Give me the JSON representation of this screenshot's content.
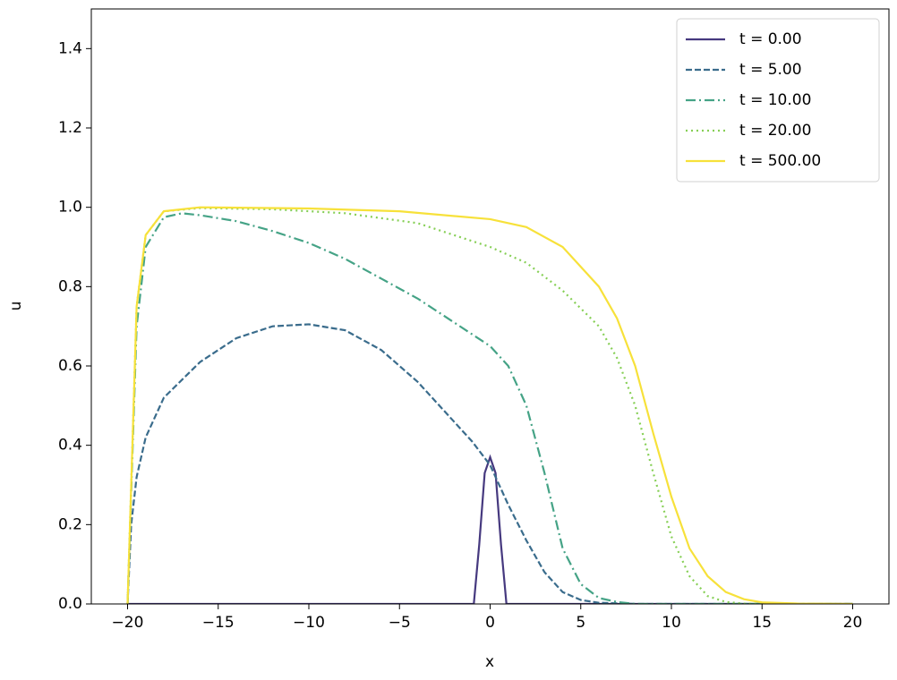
{
  "chart_data": {
    "type": "line",
    "xlabel": "x",
    "ylabel": "u",
    "xlim": [
      -22,
      22
    ],
    "ylim": [
      0,
      1.5
    ],
    "xticks": [
      {
        "value": -20,
        "label": "−20"
      },
      {
        "value": -15,
        "label": "−15"
      },
      {
        "value": -10,
        "label": "−10"
      },
      {
        "value": -5,
        "label": "−5"
      },
      0,
      5,
      10,
      15,
      20
    ],
    "yticks": [
      {
        "value": 0,
        "label": "0.0"
      },
      {
        "value": 0.2,
        "label": "0.2"
      },
      {
        "value": 0.4,
        "label": "0.4"
      },
      {
        "value": 0.6,
        "label": "0.6"
      },
      {
        "value": 0.8,
        "label": "0.8"
      },
      {
        "value": 1.0,
        "label": "1.0"
      },
      {
        "value": 1.2,
        "label": "1.2"
      },
      {
        "value": 1.4,
        "label": "1.4"
      }
    ],
    "legend": "upper right",
    "grid": false,
    "series": [
      {
        "name": "t = 0.00",
        "color": "#46397f",
        "linestyle": "solid",
        "x": [
          -20,
          -0.9,
          -0.6,
          -0.3,
          0,
          0.3,
          0.6,
          0.9,
          20
        ],
        "values": [
          0,
          0,
          0.15,
          0.33,
          0.37,
          0.33,
          0.15,
          0,
          0
        ]
      },
      {
        "name": "t = 5.00",
        "color": "#3a6c8c",
        "linestyle": "dashed",
        "x": [
          -20,
          -19.8,
          -19.5,
          -19,
          -18,
          -16,
          -14,
          -12,
          -10,
          -8,
          -6,
          -4,
          -2,
          -1,
          0,
          1,
          2,
          3,
          4,
          5,
          6,
          8,
          20
        ],
        "values": [
          0,
          0.2,
          0.32,
          0.42,
          0.52,
          0.61,
          0.67,
          0.7,
          0.705,
          0.69,
          0.64,
          0.56,
          0.46,
          0.41,
          0.35,
          0.25,
          0.16,
          0.08,
          0.03,
          0.01,
          0.003,
          0,
          0
        ]
      },
      {
        "name": "t = 10.00",
        "color": "#45a386",
        "linestyle": "dashdot",
        "x": [
          -20,
          -19.5,
          -19,
          -18,
          -17,
          -16,
          -14,
          -12,
          -10,
          -8,
          -6,
          -4,
          -2,
          0,
          1,
          2,
          3,
          4,
          5,
          6,
          7,
          8,
          20
        ],
        "values": [
          0,
          0.7,
          0.9,
          0.975,
          0.985,
          0.98,
          0.965,
          0.94,
          0.91,
          0.87,
          0.82,
          0.77,
          0.71,
          0.65,
          0.6,
          0.5,
          0.33,
          0.14,
          0.05,
          0.015,
          0.005,
          0,
          0
        ]
      },
      {
        "name": "t = 20.00",
        "color": "#86cf55",
        "linestyle": "dotted",
        "x": [
          -20,
          -19.5,
          -19,
          -18,
          -16,
          -12,
          -8,
          -4,
          0,
          2,
          4,
          6,
          7,
          8,
          9,
          10,
          11,
          12,
          13,
          14,
          20
        ],
        "values": [
          0,
          0.75,
          0.93,
          0.99,
          0.998,
          0.995,
          0.985,
          0.96,
          0.9,
          0.86,
          0.79,
          0.7,
          0.62,
          0.5,
          0.33,
          0.17,
          0.07,
          0.02,
          0.005,
          0.001,
          0
        ]
      },
      {
        "name": "t = 500.00",
        "color": "#f7e13a",
        "linestyle": "solid",
        "x": [
          -20,
          -19.5,
          -19,
          -18,
          -16,
          -10,
          -5,
          0,
          2,
          4,
          6,
          7,
          8,
          9,
          10,
          11,
          12,
          13,
          14,
          15,
          17,
          20
        ],
        "values": [
          0,
          0.75,
          0.93,
          0.99,
          1.0,
          0.997,
          0.99,
          0.97,
          0.95,
          0.9,
          0.8,
          0.72,
          0.6,
          0.43,
          0.27,
          0.14,
          0.07,
          0.03,
          0.012,
          0.004,
          0.001,
          0
        ]
      }
    ]
  }
}
